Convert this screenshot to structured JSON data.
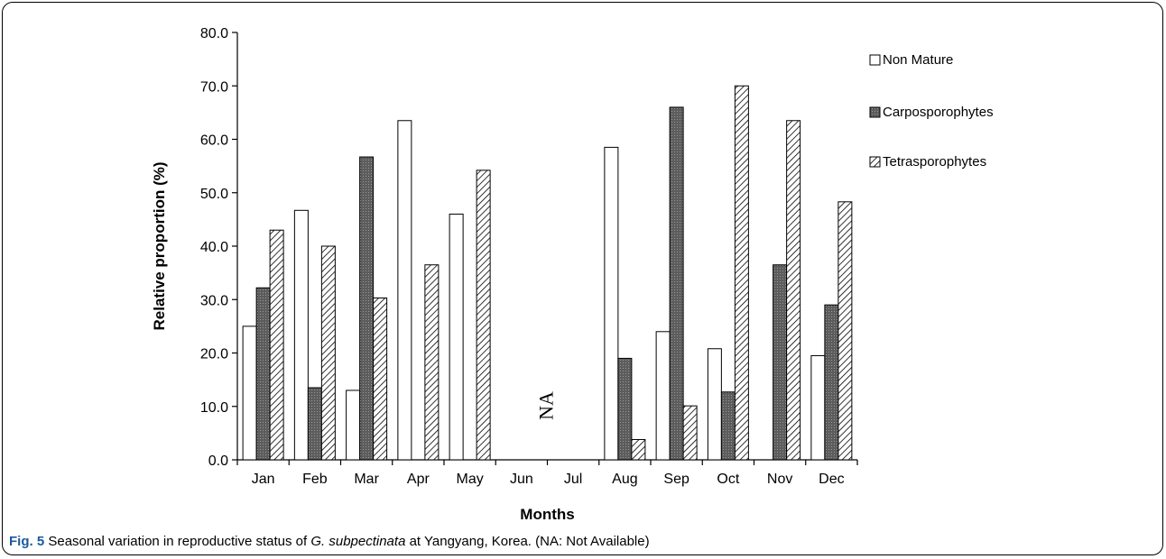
{
  "chart_data": {
    "type": "bar",
    "title": "",
    "xlabel": "Months",
    "ylabel": "Relative proportion  (%)",
    "ylim": [
      0,
      80
    ],
    "yticks": [
      "0.0",
      "10.0",
      "20.0",
      "30.0",
      "40.0",
      "50.0",
      "60.0",
      "70.0",
      "80.0"
    ],
    "categories": [
      "Jan",
      "Feb",
      "Mar",
      "Apr",
      "May",
      "Jun",
      "Jul",
      "Aug",
      "Sep",
      "Oct",
      "Nov",
      "Dec"
    ],
    "series": [
      {
        "name": "Non Mature",
        "values": [
          25.0,
          46.7,
          13.0,
          63.5,
          46.0,
          null,
          null,
          58.5,
          24.0,
          20.8,
          0,
          19.5
        ],
        "fill": "#ffffff"
      },
      {
        "name": "Carposporophytes",
        "values": [
          32.2,
          13.5,
          56.7,
          0,
          0,
          null,
          null,
          19.0,
          66.0,
          12.7,
          36.5,
          29.0
        ],
        "fill": "#6a6a6a"
      },
      {
        "name": "Tetrasporophytes",
        "values": [
          43.0,
          40.0,
          30.3,
          36.5,
          54.2,
          null,
          null,
          3.8,
          10.1,
          70.0,
          63.5,
          48.3
        ],
        "fill": "hatch"
      }
    ],
    "annotations": [
      "NA"
    ],
    "legend": "right",
    "grid": false
  },
  "caption": {
    "label": "Fig. 5",
    "text_before": "Seasonal variation in reproductive status of ",
    "species": "G. subpectinata",
    "text_after": " at Yangyang, Korea. (NA: Not Available)"
  }
}
